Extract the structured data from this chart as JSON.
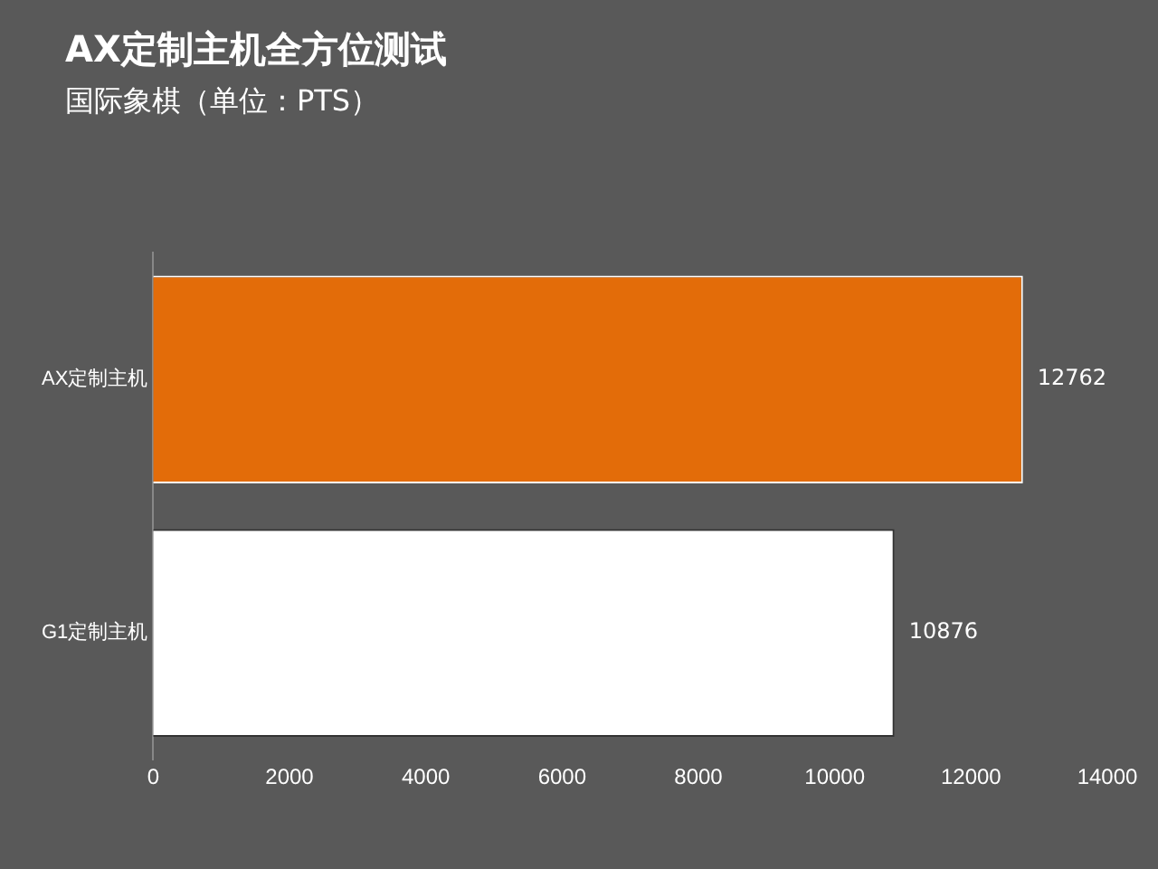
{
  "chart_data": {
    "type": "bar",
    "orientation": "horizontal",
    "title": "AX定制主机全方位测试",
    "subtitle": "国际象棋（单位：PTS）",
    "categories": [
      "AX定制主机",
      "G1定制主机"
    ],
    "values": [
      12762,
      10876
    ],
    "colors": [
      "#e36c09",
      "#ffffff"
    ],
    "xlim": [
      0,
      14000
    ],
    "xticks": [
      0,
      2000,
      4000,
      6000,
      8000,
      10000,
      12000,
      14000
    ],
    "grid": false,
    "legend": false,
    "data_labels": true
  }
}
